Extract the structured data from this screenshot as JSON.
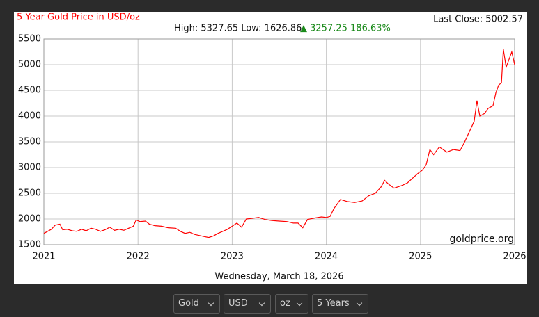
{
  "chart_data": {
    "type": "line",
    "title": "5 Year Gold Price in USD/oz",
    "last_close": "Last Close: 5002.57",
    "high_low": "High: 5327.65 Low: 1626.86",
    "change": "▲ 3257.25 186.63%",
    "watermark": "goldprice.org",
    "date": "Wednesday, March 18, 2026",
    "color": "#ff0000",
    "grid": true,
    "x": [
      2021.0,
      2021.04,
      2021.08,
      2021.12,
      2021.17,
      2021.2,
      2021.25,
      2021.3,
      2021.35,
      2021.4,
      2021.45,
      2021.5,
      2021.55,
      2021.6,
      2021.65,
      2021.7,
      2021.75,
      2021.8,
      2021.85,
      2021.9,
      2021.95,
      2021.98,
      2022.02,
      2022.08,
      2022.12,
      2022.18,
      2022.25,
      2022.32,
      2022.4,
      2022.45,
      2022.5,
      2022.55,
      2022.6,
      2022.65,
      2022.7,
      2022.75,
      2022.8,
      2022.85,
      2022.9,
      2022.95,
      2023.0,
      2023.05,
      2023.1,
      2023.15,
      2023.2,
      2023.28,
      2023.35,
      2023.42,
      2023.5,
      2023.58,
      2023.65,
      2023.7,
      2023.75,
      2023.8,
      2023.88,
      2023.95,
      2024.0,
      2024.04,
      2024.08,
      2024.15,
      2024.22,
      2024.3,
      2024.38,
      2024.45,
      2024.52,
      2024.58,
      2024.62,
      2024.66,
      2024.72,
      2024.8,
      2024.86,
      2024.92,
      2024.97,
      2025.02,
      2025.06,
      2025.1,
      2025.14,
      2025.2,
      2025.28,
      2025.35,
      2025.42,
      2025.47,
      2025.52,
      2025.57,
      2025.6,
      2025.63,
      2025.68,
      2025.72,
      2025.77,
      2025.8,
      2025.83,
      2025.86,
      2025.88,
      2025.91,
      2025.94,
      2025.97,
      2026.0
    ],
    "values": [
      1720,
      1760,
      1800,
      1880,
      1900,
      1790,
      1800,
      1770,
      1760,
      1800,
      1770,
      1820,
      1800,
      1760,
      1790,
      1840,
      1780,
      1800,
      1780,
      1820,
      1860,
      1980,
      1950,
      1960,
      1900,
      1870,
      1860,
      1830,
      1820,
      1760,
      1720,
      1740,
      1700,
      1680,
      1660,
      1640,
      1670,
      1720,
      1760,
      1800,
      1860,
      1920,
      1840,
      2000,
      2010,
      2030,
      1990,
      1970,
      1960,
      1950,
      1920,
      1920,
      1830,
      1990,
      2020,
      2040,
      2030,
      2050,
      2200,
      2380,
      2340,
      2320,
      2350,
      2450,
      2500,
      2620,
      2750,
      2680,
      2600,
      2650,
      2700,
      2800,
      2880,
      2950,
      3050,
      3350,
      3250,
      3400,
      3300,
      3350,
      3330,
      3500,
      3700,
      3900,
      4300,
      4000,
      4050,
      4150,
      4200,
      4450,
      4600,
      4650,
      5300,
      4950,
      5100,
      5250,
      5000
    ],
    "xlim": [
      2021,
      2026
    ],
    "ylim": [
      1500,
      5500
    ],
    "xticks": [
      2021,
      2022,
      2023,
      2024,
      2025,
      2026
    ],
    "yticks": [
      1500,
      2000,
      2500,
      3000,
      3500,
      4000,
      4500,
      5000,
      5500
    ]
  },
  "controls": [
    "Gold",
    "USD",
    "oz",
    "5 Years"
  ]
}
